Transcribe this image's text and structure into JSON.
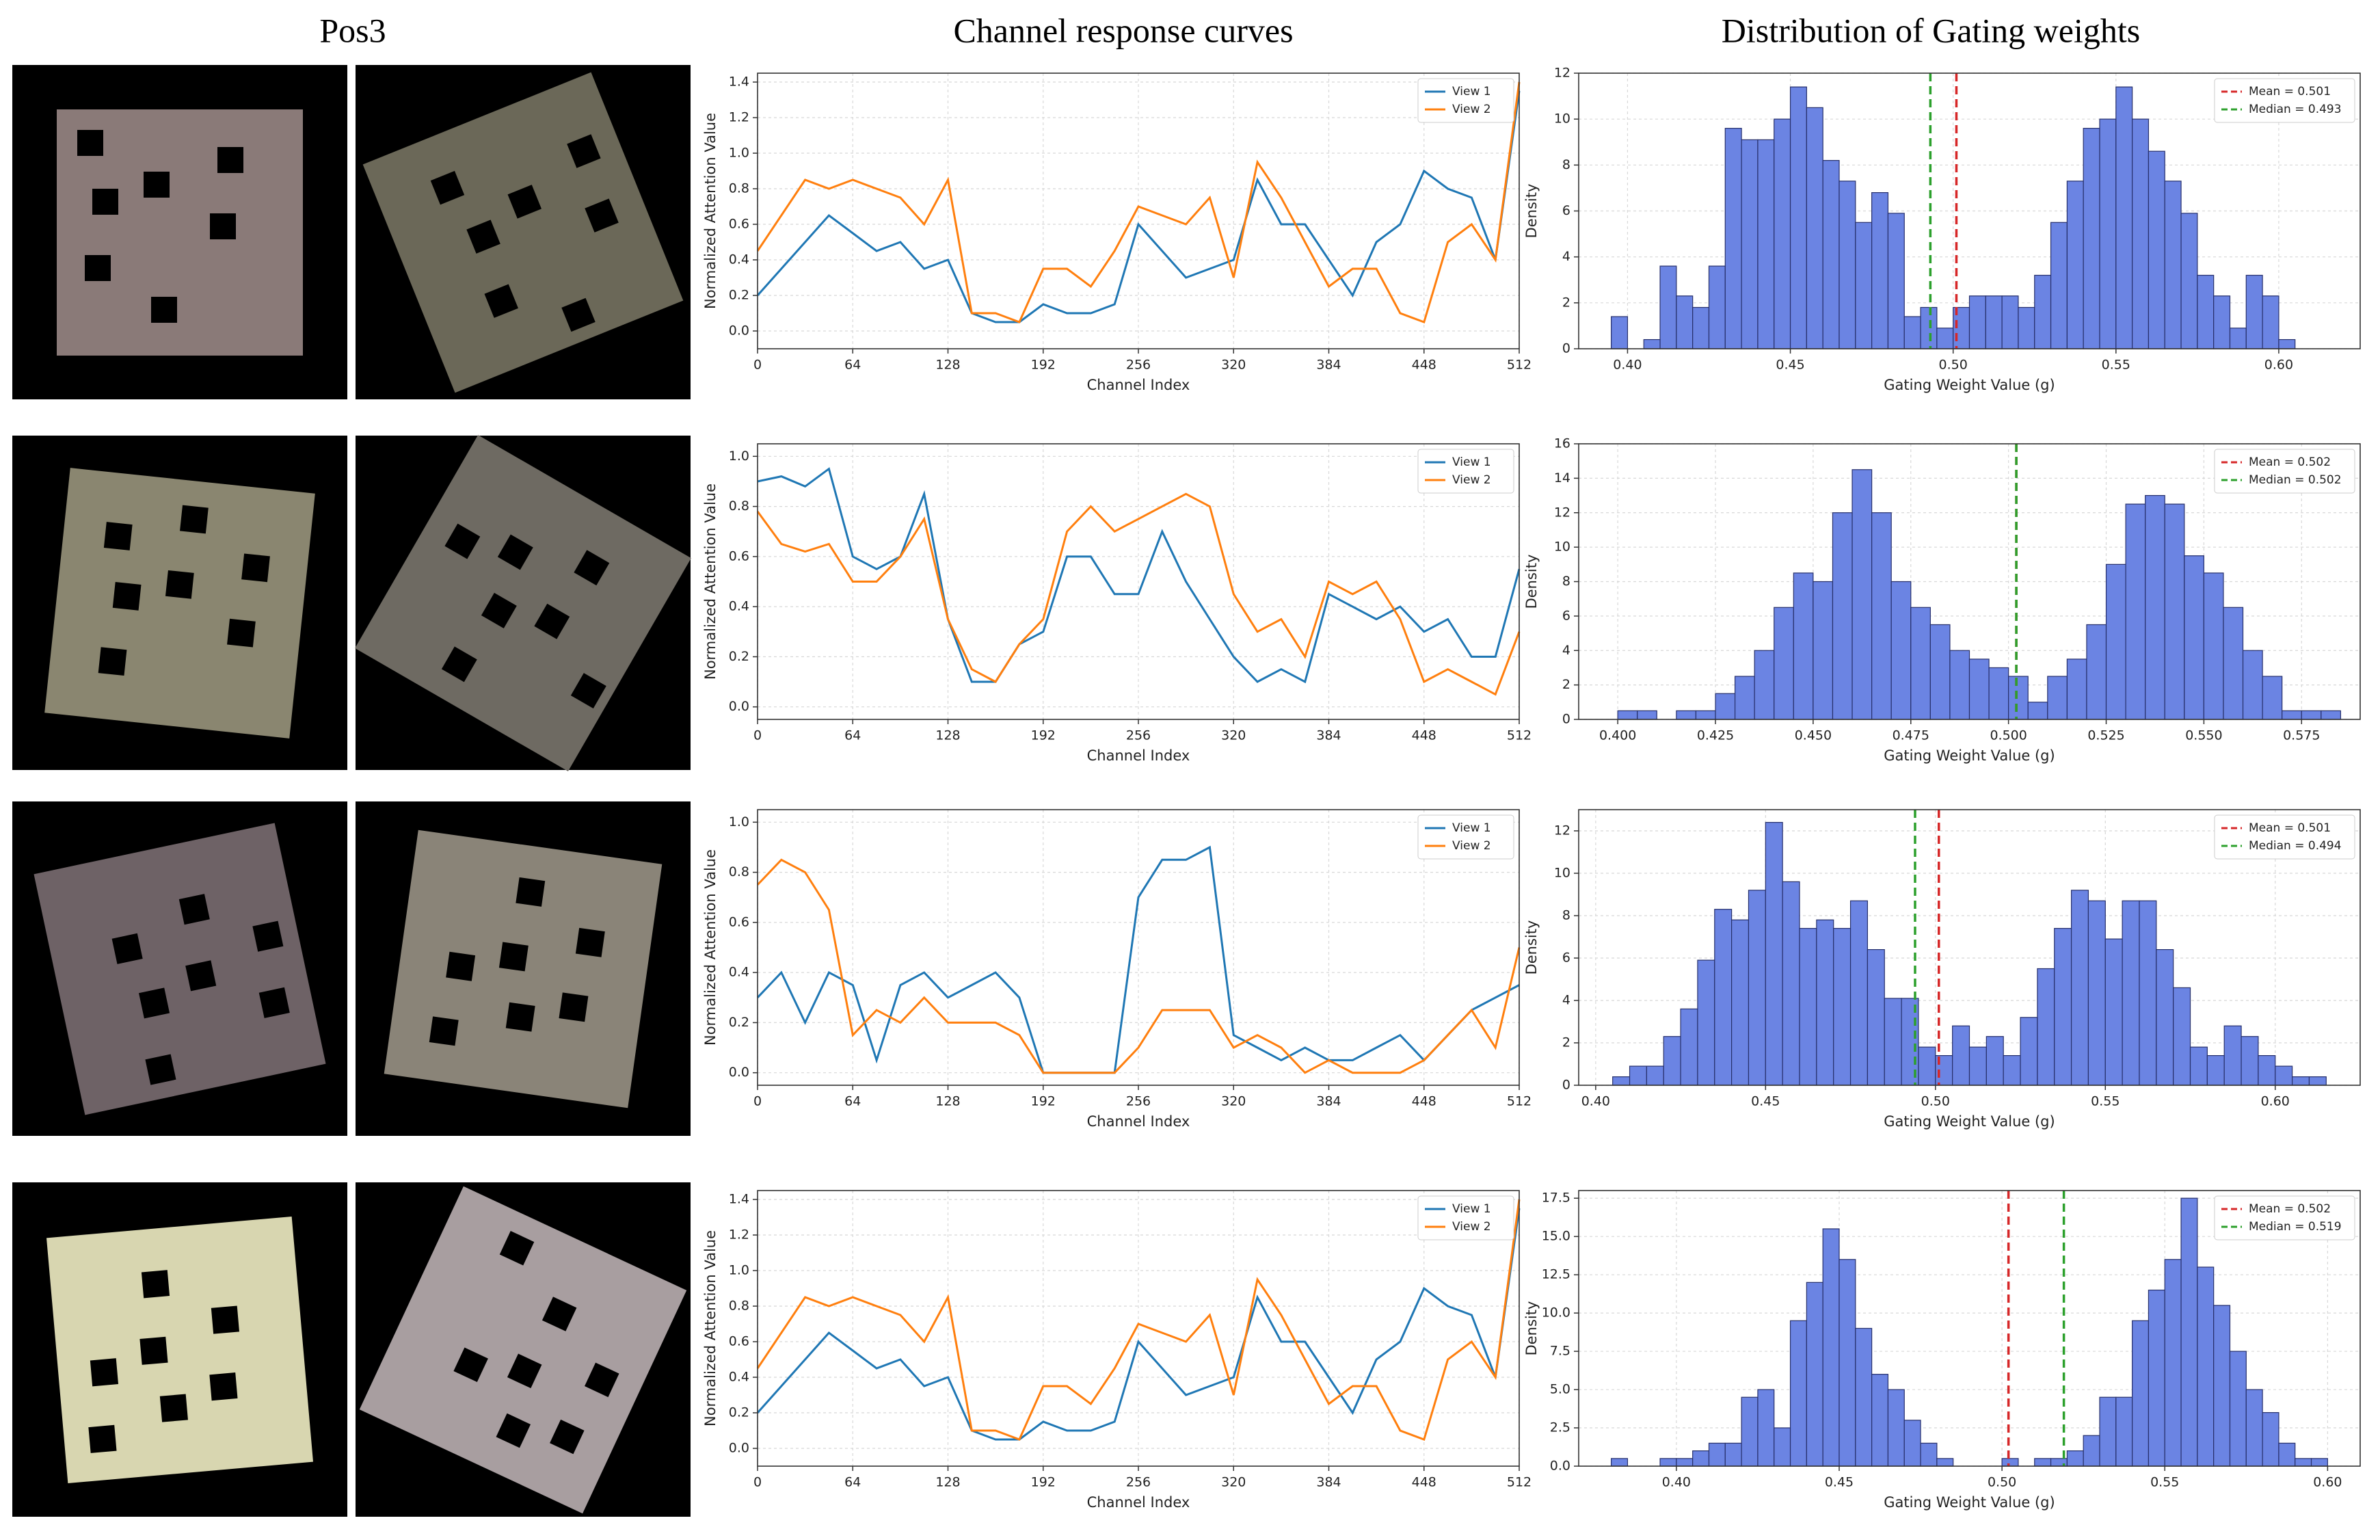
{
  "headers": [
    "Pos3",
    "Channel response curves",
    "Distribution of Gating weights"
  ],
  "chart_data": [
    {
      "type": "line",
      "xlabel": "Channel Index",
      "ylabel": "Normalized Attention Value",
      "grid": true,
      "legend": "upper right",
      "x": [
        0,
        16,
        32,
        48,
        64,
        80,
        96,
        112,
        128,
        144,
        160,
        176,
        192,
        208,
        224,
        240,
        256,
        272,
        288,
        304,
        320,
        336,
        352,
        368,
        384,
        400,
        416,
        432,
        448,
        464,
        480,
        496,
        512
      ],
      "xlim": [
        0,
        512
      ],
      "xticks": [
        0,
        64,
        128,
        192,
        256,
        320,
        384,
        448,
        512
      ],
      "ylim": [
        -0.1,
        1.45
      ],
      "yticks": [
        {
          "value": 0,
          "label": "0.0"
        },
        0.2,
        0.4,
        0.6,
        0.8,
        {
          "value": 1,
          "label": "1.0"
        },
        1.2,
        1.4
      ],
      "series": [
        {
          "name": "View 1",
          "color": "#1f77b4",
          "values": [
            0.2,
            0.35,
            0.5,
            0.65,
            0.55,
            0.45,
            0.5,
            0.35,
            0.4,
            0.1,
            0.05,
            0.05,
            0.15,
            0.1,
            0.1,
            0.15,
            0.6,
            0.45,
            0.3,
            0.35,
            0.4,
            0.85,
            0.6,
            0.6,
            0.4,
            0.2,
            0.5,
            0.6,
            0.9,
            0.8,
            0.75,
            0.4,
            1.35
          ]
        },
        {
          "name": "View 2",
          "color": "#ff7f0e",
          "values": [
            0.45,
            0.65,
            0.85,
            0.8,
            0.85,
            0.8,
            0.75,
            0.6,
            0.85,
            0.1,
            0.1,
            0.05,
            0.35,
            0.35,
            0.25,
            0.45,
            0.7,
            0.65,
            0.6,
            0.75,
            0.3,
            0.95,
            0.75,
            0.5,
            0.25,
            0.35,
            0.35,
            0.1,
            0.05,
            0.5,
            0.6,
            0.4,
            1.4
          ]
        }
      ]
    },
    {
      "type": "histogram",
      "xlabel": "Gating Weight Value (g)",
      "ylabel": "Density",
      "grid": true,
      "legend": "upper right",
      "color": "#6b84e3",
      "bins": [
        0.395,
        0.4,
        0.405,
        0.41,
        0.415,
        0.42,
        0.425,
        0.43,
        0.435,
        0.44,
        0.445,
        0.45,
        0.455,
        0.46,
        0.465,
        0.47,
        0.475,
        0.48,
        0.485,
        0.49,
        0.495,
        0.5,
        0.505,
        0.51,
        0.515,
        0.52,
        0.525,
        0.53,
        0.535,
        0.54,
        0.545,
        0.55,
        0.555,
        0.56,
        0.565,
        0.57,
        0.575,
        0.58,
        0.585,
        0.59,
        0.595,
        0.6,
        0.605
      ],
      "values": [
        1.4,
        0,
        0.4,
        3.6,
        2.3,
        1.8,
        3.6,
        9.6,
        9.1,
        9.1,
        10.0,
        11.4,
        10.5,
        8.2,
        7.3,
        5.5,
        6.8,
        5.9,
        1.4,
        1.8,
        0.9,
        1.8,
        2.3,
        2.3,
        2.3,
        1.8,
        3.2,
        5.5,
        7.3,
        9.6,
        10.0,
        11.4,
        10.0,
        8.6,
        7.3,
        5.9,
        3.2,
        2.3,
        0.9,
        3.2,
        2.3,
        0.4
      ],
      "xlim": [
        0.385,
        0.625
      ],
      "xticks": [
        {
          "value": 0.4,
          "label": "0.40"
        },
        0.45,
        {
          "value": 0.5,
          "label": "0.50"
        },
        0.55,
        {
          "value": 0.6,
          "label": "0.60"
        }
      ],
      "ylim": [
        0,
        12
      ],
      "yticks": [
        0,
        2,
        4,
        6,
        8,
        10,
        12
      ],
      "lines": [
        {
          "name": "Mean = 0.501",
          "value": 0.501,
          "color": "#d62728"
        },
        {
          "name": "Median = 0.493",
          "value": 0.493,
          "color": "#2ca02c"
        }
      ]
    },
    {
      "type": "line",
      "xlabel": "Channel Index",
      "ylabel": "Normalized Attention Value",
      "grid": true,
      "legend": "upper right",
      "x": [
        0,
        16,
        32,
        48,
        64,
        80,
        96,
        112,
        128,
        144,
        160,
        176,
        192,
        208,
        224,
        240,
        256,
        272,
        288,
        304,
        320,
        336,
        352,
        368,
        384,
        400,
        416,
        432,
        448,
        464,
        480,
        496,
        512
      ],
      "xlim": [
        0,
        512
      ],
      "xticks": [
        0,
        64,
        128,
        192,
        256,
        320,
        384,
        448,
        512
      ],
      "ylim": [
        -0.05,
        1.05
      ],
      "yticks": [
        {
          "value": 0,
          "label": "0.0"
        },
        0.2,
        0.4,
        0.6,
        0.8,
        {
          "value": 1,
          "label": "1.0"
        }
      ],
      "series": [
        {
          "name": "View 1",
          "color": "#1f77b4",
          "values": [
            0.9,
            0.92,
            0.88,
            0.95,
            0.6,
            0.55,
            0.6,
            0.85,
            0.35,
            0.1,
            0.1,
            0.25,
            0.3,
            0.6,
            0.6,
            0.45,
            0.45,
            0.7,
            0.5,
            0.35,
            0.2,
            0.1,
            0.15,
            0.1,
            0.45,
            0.4,
            0.35,
            0.4,
            0.3,
            0.35,
            0.2,
            0.2,
            0.55
          ]
        },
        {
          "name": "View 2",
          "color": "#ff7f0e",
          "values": [
            0.78,
            0.65,
            0.62,
            0.65,
            0.5,
            0.5,
            0.6,
            0.75,
            0.35,
            0.15,
            0.1,
            0.25,
            0.35,
            0.7,
            0.8,
            0.7,
            0.75,
            0.8,
            0.85,
            0.8,
            0.45,
            0.3,
            0.35,
            0.2,
            0.5,
            0.45,
            0.5,
            0.35,
            0.1,
            0.15,
            0.1,
            0.05,
            0.3
          ]
        }
      ]
    },
    {
      "type": "histogram",
      "xlabel": "Gating Weight Value (g)",
      "ylabel": "Density",
      "grid": true,
      "legend": "upper right",
      "color": "#6b84e3",
      "bins": [
        0.4,
        0.405,
        0.41,
        0.415,
        0.42,
        0.425,
        0.43,
        0.435,
        0.44,
        0.445,
        0.45,
        0.455,
        0.46,
        0.465,
        0.47,
        0.475,
        0.48,
        0.485,
        0.49,
        0.495,
        0.5,
        0.505,
        0.51,
        0.515,
        0.52,
        0.525,
        0.53,
        0.535,
        0.54,
        0.545,
        0.55,
        0.555,
        0.56,
        0.565,
        0.57,
        0.575,
        0.58,
        0.585
      ],
      "values": [
        0.5,
        0.5,
        0,
        0.5,
        0.5,
        1.5,
        2.5,
        4,
        6.5,
        8.5,
        8,
        12,
        14.5,
        12,
        8,
        6.5,
        5.5,
        4,
        3.5,
        3,
        2.5,
        1,
        2.5,
        3.5,
        5.5,
        9,
        12.5,
        13,
        12.5,
        9.5,
        8.5,
        6.5,
        4,
        2.5,
        0.5,
        0.5,
        0.5
      ],
      "xlim": [
        0.39,
        0.59
      ],
      "xticks": [
        {
          "value": 0.4,
          "label": "0.400"
        },
        0.425,
        {
          "value": 0.45,
          "label": "0.450"
        },
        0.475,
        {
          "value": 0.5,
          "label": "0.500"
        },
        0.525,
        {
          "value": 0.55,
          "label": "0.550"
        },
        0.575
      ],
      "ylim": [
        0,
        16
      ],
      "yticks": [
        0,
        2,
        4,
        6,
        8,
        10,
        12,
        14,
        16
      ],
      "lines": [
        {
          "name": "Mean = 0.502",
          "value": 0.502,
          "color": "#d62728"
        },
        {
          "name": "Median = 0.502",
          "value": 0.502,
          "color": "#2ca02c"
        }
      ]
    },
    {
      "type": "line",
      "xlabel": "Channel Index",
      "ylabel": "Normalized Attention Value",
      "grid": true,
      "legend": "upper right",
      "x": [
        0,
        16,
        32,
        48,
        64,
        80,
        96,
        112,
        128,
        144,
        160,
        176,
        192,
        208,
        224,
        240,
        256,
        272,
        288,
        304,
        320,
        336,
        352,
        368,
        384,
        400,
        416,
        432,
        448,
        464,
        480,
        496,
        512
      ],
      "xlim": [
        0,
        512
      ],
      "xticks": [
        0,
        64,
        128,
        192,
        256,
        320,
        384,
        448,
        512
      ],
      "ylim": [
        -0.05,
        1.05
      ],
      "yticks": [
        {
          "value": 0,
          "label": "0.0"
        },
        0.2,
        0.4,
        0.6,
        0.8,
        {
          "value": 1,
          "label": "1.0"
        }
      ],
      "series": [
        {
          "name": "View 1",
          "color": "#1f77b4",
          "values": [
            0.3,
            0.4,
            0.2,
            0.4,
            0.35,
            0.05,
            0.35,
            0.4,
            0.3,
            0.35,
            0.4,
            0.3,
            0.0,
            0.0,
            0.0,
            0.0,
            0.7,
            0.85,
            0.85,
            0.9,
            0.15,
            0.1,
            0.05,
            0.1,
            0.05,
            0.05,
            0.1,
            0.15,
            0.05,
            0.15,
            0.25,
            0.3,
            0.35
          ]
        },
        {
          "name": "View 2",
          "color": "#ff7f0e",
          "values": [
            0.75,
            0.85,
            0.8,
            0.65,
            0.15,
            0.25,
            0.2,
            0.3,
            0.2,
            0.2,
            0.2,
            0.15,
            0.0,
            0.0,
            0.0,
            0.0,
            0.1,
            0.25,
            0.25,
            0.25,
            0.1,
            0.15,
            0.1,
            0.0,
            0.05,
            0.0,
            0.0,
            0.0,
            0.05,
            0.15,
            0.25,
            0.1,
            0.5
          ]
        }
      ]
    },
    {
      "type": "histogram",
      "xlabel": "Gating Weight Value (g)",
      "ylabel": "Density",
      "grid": true,
      "legend": "upper right",
      "color": "#6b84e3",
      "bins": [
        0.405,
        0.41,
        0.415,
        0.42,
        0.425,
        0.43,
        0.435,
        0.44,
        0.445,
        0.45,
        0.455,
        0.46,
        0.465,
        0.47,
        0.475,
        0.48,
        0.485,
        0.49,
        0.495,
        0.5,
        0.505,
        0.51,
        0.515,
        0.52,
        0.525,
        0.53,
        0.535,
        0.54,
        0.545,
        0.55,
        0.555,
        0.56,
        0.565,
        0.57,
        0.575,
        0.58,
        0.585,
        0.59,
        0.595,
        0.6,
        0.605,
        0.61,
        0.615
      ],
      "values": [
        0.4,
        0.9,
        0.9,
        2.3,
        3.6,
        5.9,
        8.3,
        7.8,
        9.2,
        12.4,
        9.6,
        7.4,
        7.8,
        7.4,
        8.7,
        6.4,
        4.1,
        4.1,
        1.8,
        1.4,
        2.8,
        1.8,
        2.3,
        1.4,
        3.2,
        5.5,
        7.4,
        9.2,
        8.7,
        6.9,
        8.7,
        8.7,
        6.4,
        4.6,
        1.8,
        1.4,
        2.8,
        2.3,
        1.4,
        0.9,
        0.4,
        0.4
      ],
      "xlim": [
        0.395,
        0.625
      ],
      "xticks": [
        {
          "value": 0.4,
          "label": "0.40"
        },
        0.45,
        {
          "value": 0.5,
          "label": "0.50"
        },
        0.55,
        {
          "value": 0.6,
          "label": "0.60"
        }
      ],
      "ylim": [
        0,
        13
      ],
      "yticks": [
        0,
        2,
        4,
        6,
        8,
        10,
        12
      ],
      "lines": [
        {
          "name": "Mean = 0.501",
          "value": 0.501,
          "color": "#d62728"
        },
        {
          "name": "Median = 0.494",
          "value": 0.494,
          "color": "#2ca02c"
        }
      ]
    },
    {
      "type": "line",
      "xlabel": "Channel Index",
      "ylabel": "Normalized Attention Value",
      "grid": true,
      "legend": "upper right",
      "x": [
        0,
        16,
        32,
        48,
        64,
        80,
        96,
        112,
        128,
        144,
        160,
        176,
        192,
        208,
        224,
        240,
        256,
        272,
        288,
        304,
        320,
        336,
        352,
        368,
        384,
        400,
        416,
        432,
        448,
        464,
        480,
        496,
        512
      ],
      "xlim": [
        0,
        512
      ],
      "xticks": [
        0,
        64,
        128,
        192,
        256,
        320,
        384,
        448,
        512
      ],
      "ylim": [
        -0.1,
        1.45
      ],
      "yticks": [
        {
          "value": 0,
          "label": "0.0"
        },
        0.2,
        0.4,
        0.6,
        0.8,
        {
          "value": 1,
          "label": "1.0"
        },
        1.2,
        1.4
      ],
      "series": [
        {
          "name": "View 1",
          "color": "#1f77b4",
          "values": [
            0.2,
            0.35,
            0.5,
            0.65,
            0.55,
            0.45,
            0.5,
            0.35,
            0.4,
            0.1,
            0.05,
            0.05,
            0.15,
            0.1,
            0.1,
            0.15,
            0.6,
            0.45,
            0.3,
            0.35,
            0.4,
            0.85,
            0.6,
            0.6,
            0.4,
            0.2,
            0.5,
            0.6,
            0.9,
            0.8,
            0.75,
            0.4,
            1.35
          ]
        },
        {
          "name": "View 2",
          "color": "#ff7f0e",
          "values": [
            0.45,
            0.65,
            0.85,
            0.8,
            0.85,
            0.8,
            0.75,
            0.6,
            0.85,
            0.1,
            0.1,
            0.05,
            0.35,
            0.35,
            0.25,
            0.45,
            0.7,
            0.65,
            0.6,
            0.75,
            0.3,
            0.95,
            0.75,
            0.5,
            0.25,
            0.35,
            0.35,
            0.1,
            0.05,
            0.5,
            0.6,
            0.4,
            1.4
          ]
        }
      ]
    },
    {
      "type": "histogram",
      "xlabel": "Gating Weight Value (g)",
      "ylabel": "Density",
      "grid": true,
      "legend": "upper right",
      "color": "#6b84e3",
      "bins": [
        0.38,
        0.385,
        0.39,
        0.395,
        0.4,
        0.405,
        0.41,
        0.415,
        0.42,
        0.425,
        0.43,
        0.435,
        0.44,
        0.445,
        0.45,
        0.455,
        0.46,
        0.465,
        0.47,
        0.475,
        0.48,
        0.485,
        0.49,
        0.495,
        0.5,
        0.505,
        0.51,
        0.515,
        0.52,
        0.525,
        0.53,
        0.535,
        0.54,
        0.545,
        0.55,
        0.555,
        0.56,
        0.565,
        0.57,
        0.575,
        0.58,
        0.585,
        0.59,
        0.595,
        0.6
      ],
      "values": [
        0.5,
        0,
        0,
        0.5,
        0.5,
        1,
        1.5,
        1.5,
        4.5,
        5,
        2.5,
        9.5,
        12,
        15.5,
        13.5,
        9,
        6,
        5,
        3,
        1.5,
        0.5,
        0,
        0,
        0,
        0.5,
        0,
        0.5,
        0.5,
        1,
        2,
        4.5,
        4.5,
        9.5,
        11.5,
        13.5,
        17.5,
        13,
        10.5,
        7.5,
        5,
        3.5,
        1.5,
        0.5,
        0.5
      ],
      "xlim": [
        0.37,
        0.61
      ],
      "xticks": [
        {
          "value": 0.4,
          "label": "0.40"
        },
        0.45,
        {
          "value": 0.5,
          "label": "0.50"
        },
        0.55,
        {
          "value": 0.6,
          "label": "0.60"
        }
      ],
      "ylim": [
        0,
        18
      ],
      "yticks": [
        {
          "value": 0,
          "label": "0.0"
        },
        2.5,
        {
          "value": 5,
          "label": "5.0"
        },
        7.5,
        {
          "value": 10,
          "label": "10.0"
        },
        12.5,
        {
          "value": 15,
          "label": "15.0"
        },
        17.5
      ],
      "lines": [
        {
          "name": "Mean = 0.502",
          "value": 0.502,
          "color": "#d62728"
        },
        {
          "name": "Median = 0.519",
          "value": 0.519,
          "color": "#2ca02c"
        }
      ]
    }
  ]
}
